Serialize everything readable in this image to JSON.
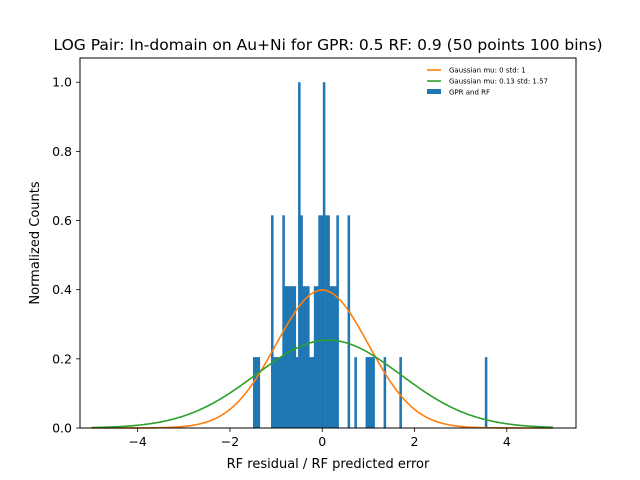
{
  "chart_data": {
    "type": "bar",
    "title": "LOG Pair: In-domain on Au+Ni for GPR: 0.5 RF: 0.9 (50 points 100 bins)",
    "xlabel": "RF residual / RF predicted error",
    "ylabel": "Normalized Counts",
    "xlim": [
      -5.25,
      5.5
    ],
    "ylim": [
      0,
      1.07
    ],
    "xticks": [
      -4,
      -2,
      0,
      2,
      4
    ],
    "xtick_labels": [
      "−4",
      "−2",
      "0",
      "2",
      "4"
    ],
    "yticks": [
      0.0,
      0.2,
      0.4,
      0.6,
      0.8,
      1.0
    ],
    "ytick_labels": [
      "0.0",
      "0.2",
      "0.4",
      "0.6",
      "0.8",
      "1.0"
    ],
    "grid": false,
    "legend_position": "top-right",
    "histogram": {
      "name": "GPR and RF",
      "color": "#1f77b4",
      "bin_width": 0.0488,
      "bins": [
        {
          "x0": -1.5,
          "value": 0.205
        },
        {
          "x0": -1.451,
          "value": 0.205
        },
        {
          "x0": -1.402,
          "value": 0.205
        },
        {
          "x0": -1.11,
          "value": 0.615
        },
        {
          "x0": -1.061,
          "value": 0.205
        },
        {
          "x0": -1.012,
          "value": 0.205
        },
        {
          "x0": -0.963,
          "value": 0.205
        },
        {
          "x0": -0.914,
          "value": 0.205
        },
        {
          "x0": -0.865,
          "value": 0.615
        },
        {
          "x0": -0.817,
          "value": 0.41
        },
        {
          "x0": -0.768,
          "value": 0.41
        },
        {
          "x0": -0.719,
          "value": 0.41
        },
        {
          "x0": -0.67,
          "value": 0.41
        },
        {
          "x0": -0.622,
          "value": 0.41
        },
        {
          "x0": -0.573,
          "value": 0.205
        },
        {
          "x0": -0.524,
          "value": 1.0
        },
        {
          "x0": -0.475,
          "value": 0.615
        },
        {
          "x0": -0.426,
          "value": 0.41
        },
        {
          "x0": -0.378,
          "value": 0.41
        },
        {
          "x0": -0.329,
          "value": 0.41
        },
        {
          "x0": -0.28,
          "value": 0.205
        },
        {
          "x0": -0.231,
          "value": 0.205
        },
        {
          "x0": -0.182,
          "value": 0.41
        },
        {
          "x0": -0.134,
          "value": 0.41
        },
        {
          "x0": -0.085,
          "value": 0.615
        },
        {
          "x0": -0.036,
          "value": 0.615
        },
        {
          "x0": 0.013,
          "value": 1.0
        },
        {
          "x0": 0.062,
          "value": 0.615
        },
        {
          "x0": 0.11,
          "value": 0.615
        },
        {
          "x0": 0.159,
          "value": 0.41
        },
        {
          "x0": 0.208,
          "value": 0.41
        },
        {
          "x0": 0.257,
          "value": 0.41
        },
        {
          "x0": 0.306,
          "value": 0.615
        },
        {
          "x0": 0.549,
          "value": 0.615
        },
        {
          "x0": 0.696,
          "value": 0.205
        },
        {
          "x0": 0.94,
          "value": 0.205
        },
        {
          "x0": 0.989,
          "value": 0.205
        },
        {
          "x0": 1.037,
          "value": 0.205
        },
        {
          "x0": 1.086,
          "value": 0.205
        },
        {
          "x0": 1.33,
          "value": 0.205
        },
        {
          "x0": 1.672,
          "value": 0.205
        },
        {
          "x0": 3.524,
          "value": 0.205
        }
      ]
    },
    "series": [
      {
        "name": "Gaussian mu: 0 std: 1",
        "type": "line",
        "color": "#ff7f0e",
        "mu": 0,
        "std": 1,
        "x_range": [
          -5,
          5
        ]
      },
      {
        "name": "Gaussian mu: 0.13 std: 1.57",
        "type": "line",
        "color": "#2ca02c",
        "mu": 0.13,
        "std": 1.57,
        "x_range": [
          -5,
          5
        ]
      }
    ],
    "legend": [
      {
        "label": "Gaussian mu: 0 std: 1",
        "kind": "line",
        "color": "#ff7f0e"
      },
      {
        "label": "Gaussian mu: 0.13 std: 1.57",
        "kind": "line",
        "color": "#2ca02c"
      },
      {
        "label": "GPR and RF",
        "kind": "patch",
        "color": "#1f77b4"
      }
    ]
  }
}
